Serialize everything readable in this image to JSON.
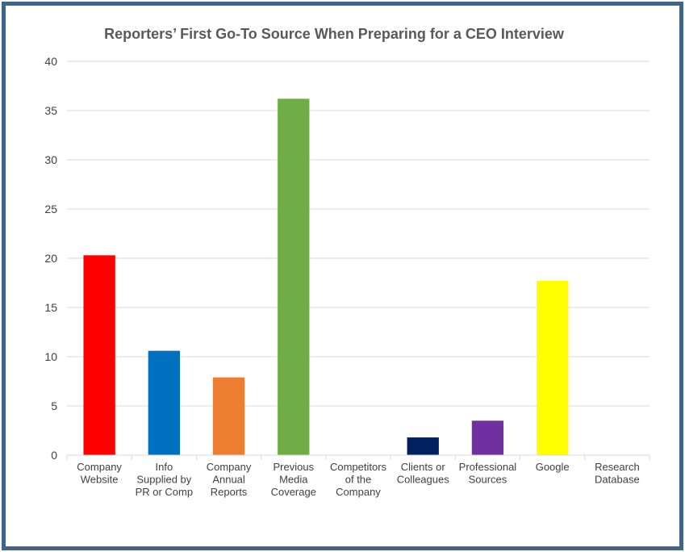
{
  "chart_data": {
    "type": "bar",
    "title": "Reporters’ First Go-To Source When Preparing for a CEO Interview",
    "xlabel": "",
    "ylabel": "",
    "ylim": [
      0,
      40
    ],
    "yticks": [
      0,
      5,
      10,
      15,
      20,
      25,
      30,
      35,
      40
    ],
    "grid": true,
    "legend": "none",
    "categories": [
      [
        "Company",
        "Website"
      ],
      [
        "Info",
        "Supplied by",
        "PR or Comp"
      ],
      [
        "Company",
        "Annual",
        "Reports"
      ],
      [
        "Previous",
        "Media",
        "Coverage"
      ],
      [
        "Competitors",
        "of the",
        "Company"
      ],
      [
        "Clients or",
        "Colleagues"
      ],
      [
        "Professional",
        "Sources"
      ],
      [
        "Google"
      ],
      [
        "Research",
        "Database"
      ]
    ],
    "values": [
      20.3,
      10.6,
      7.9,
      36.2,
      0,
      1.8,
      3.5,
      17.7,
      0
    ],
    "colors": [
      "#ff0000",
      "#0070c0",
      "#ed7d31",
      "#70ad47",
      "#a5a5a5",
      "#002060",
      "#7030a0",
      "#ffff00",
      "#5b9bd5"
    ]
  }
}
